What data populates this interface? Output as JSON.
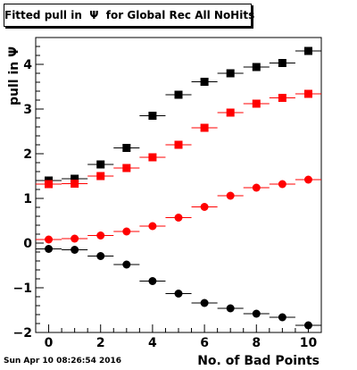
{
  "title": "Fitted pull in  Ψ  for Global Rec All NoHits",
  "footer": "Sun Apr 10 08:26:54 2016",
  "chart_data": {
    "type": "scatter",
    "title": "Fitted pull in  Ψ  for Global Rec All NoHits",
    "xlabel": "No. of Bad Points",
    "ylabel": "pull in  Ψ",
    "xlim": [
      -0.5,
      10.5
    ],
    "ylim": [
      -2,
      4.6
    ],
    "x_ticks": [
      0,
      2,
      4,
      6,
      8,
      10
    ],
    "y_ticks": [
      -2,
      -1,
      0,
      1,
      2,
      3,
      4
    ],
    "x_tick_labels": [
      "0",
      "2",
      "4",
      "6",
      "8",
      "10"
    ],
    "y_tick_labels": [
      "−2",
      "−1",
      "0",
      "1",
      "2",
      "3",
      "4"
    ],
    "grid": false,
    "x": [
      0,
      1,
      2,
      3,
      4,
      5,
      6,
      7,
      8,
      9,
      10
    ],
    "series": [
      {
        "marker": "square",
        "color": "#000000",
        "values": [
          1.4,
          1.44,
          1.76,
          2.13,
          2.85,
          3.32,
          3.61,
          3.8,
          3.94,
          4.03,
          4.3
        ]
      },
      {
        "marker": "square",
        "color": "#ff0000",
        "values": [
          1.32,
          1.33,
          1.5,
          1.68,
          1.92,
          2.2,
          2.58,
          2.92,
          3.12,
          3.25,
          3.34
        ]
      },
      {
        "marker": "circle",
        "color": "#ff0000",
        "values": [
          0.08,
          0.1,
          0.17,
          0.26,
          0.38,
          0.57,
          0.81,
          1.06,
          1.24,
          1.32,
          1.42
        ]
      },
      {
        "marker": "circle",
        "color": "#000000",
        "values": [
          -0.13,
          -0.15,
          -0.29,
          -0.48,
          -0.85,
          -1.13,
          -1.34,
          -1.46,
          -1.58,
          -1.66,
          -1.84
        ]
      }
    ]
  }
}
